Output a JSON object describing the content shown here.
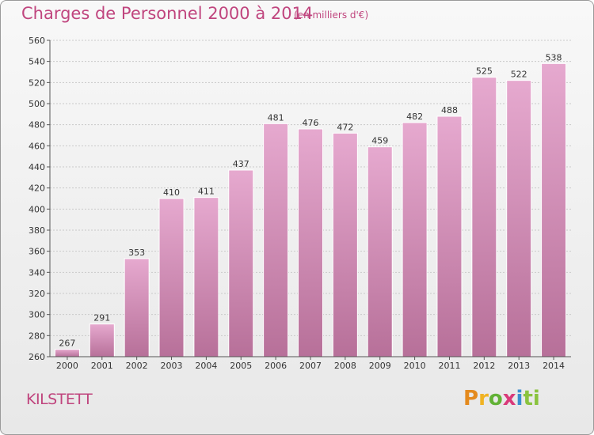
{
  "title": "Charges de Personnel 2000 à 2014",
  "subtitle": "(en milliers d'€)",
  "commune": "KILSTETT",
  "logo": {
    "p1": "P",
    "p2": "r",
    "p3": "o",
    "p4": "x",
    "p5": "i",
    "p6": "ti"
  },
  "colors": {
    "bar_top": "#e6a9cf",
    "bar_bottom": "#b77099",
    "text_accent": "#c0457e"
  },
  "chart_data": {
    "type": "bar",
    "title": "Charges de Personnel 2000 à 2014",
    "xlabel": "",
    "ylabel": "",
    "categories": [
      "2000",
      "2001",
      "2002",
      "2003",
      "2004",
      "2005",
      "2006",
      "2007",
      "2008",
      "2009",
      "2010",
      "2011",
      "2012",
      "2013",
      "2014"
    ],
    "values": [
      267,
      291,
      353,
      410,
      411,
      437,
      481,
      476,
      472,
      459,
      482,
      488,
      525,
      522,
      538
    ],
    "ylim": [
      260,
      560
    ],
    "yticks": [
      260,
      280,
      300,
      320,
      340,
      360,
      380,
      400,
      420,
      440,
      460,
      480,
      500,
      520,
      540,
      560
    ],
    "grid": true
  }
}
